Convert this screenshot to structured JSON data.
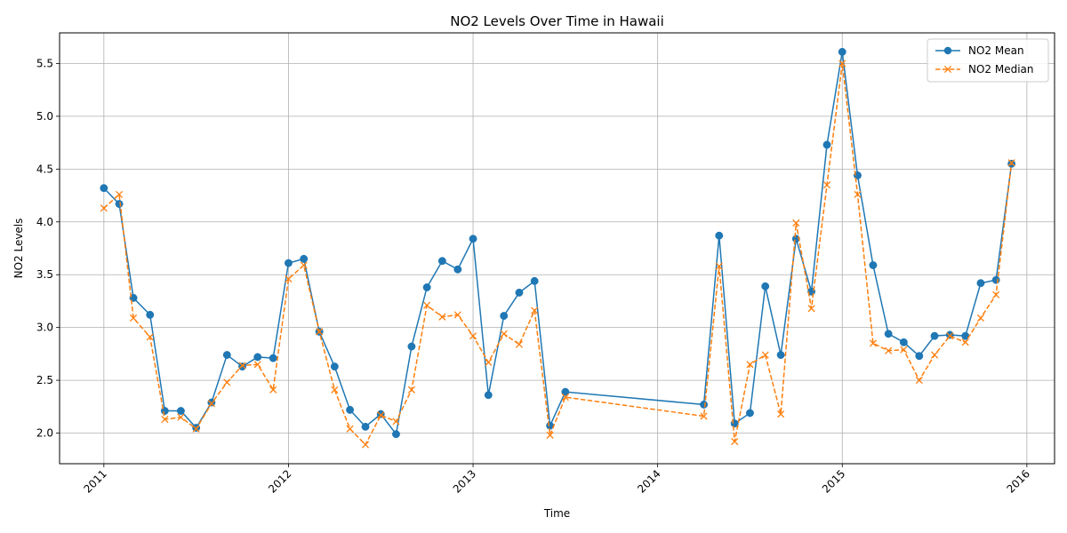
{
  "chart_data": {
    "type": "line",
    "title": "NO2 Levels Over Time in Hawaii",
    "xlabel": "Time",
    "ylabel": "NO2 Levels",
    "xlim": [
      2010.76,
      2016.15
    ],
    "ylim": [
      1.71,
      5.79
    ],
    "x_ticks": [
      2011,
      2012,
      2013,
      2014,
      2015,
      2016
    ],
    "x_tick_labels": [
      "2011",
      "2012",
      "2013",
      "2014",
      "2015",
      "2016"
    ],
    "y_ticks": [
      2.0,
      2.5,
      3.0,
      3.5,
      4.0,
      4.5,
      5.0,
      5.5
    ],
    "y_tick_labels": [
      "2.0",
      "2.5",
      "3.0",
      "3.5",
      "4.0",
      "4.5",
      "5.0",
      "5.5"
    ],
    "grid": true,
    "legend": "top-right",
    "x": [
      2011.0,
      2011.083,
      2011.16,
      2011.25,
      2011.33,
      2011.417,
      2011.5,
      2011.583,
      2011.667,
      2011.75,
      2011.833,
      2011.917,
      2012.0,
      2012.083,
      2012.167,
      2012.25,
      2012.333,
      2012.417,
      2012.5,
      2012.583,
      2012.667,
      2012.75,
      2012.833,
      2012.917,
      2013.0,
      2013.083,
      2013.167,
      2013.25,
      2013.333,
      2013.417,
      2013.5,
      2014.25,
      2014.333,
      2014.417,
      2014.5,
      2014.583,
      2014.667,
      2014.75,
      2014.833,
      2014.917,
      2015.0,
      2015.083,
      2015.167,
      2015.25,
      2015.333,
      2015.417,
      2015.5,
      2015.583,
      2015.667,
      2015.75,
      2015.833,
      2015.917
    ],
    "series": [
      {
        "name": "NO2 Mean",
        "color": "#1f77b4",
        "marker": "circle",
        "linestyle": "solid",
        "values": [
          4.32,
          4.17,
          3.28,
          3.12,
          2.21,
          2.21,
          2.05,
          2.29,
          2.74,
          2.63,
          2.72,
          2.71,
          3.61,
          3.65,
          2.96,
          2.63,
          2.22,
          2.06,
          2.18,
          1.99,
          2.82,
          3.38,
          3.63,
          3.55,
          3.84,
          2.36,
          3.11,
          3.33,
          3.44,
          2.07,
          2.39,
          2.27,
          3.87,
          2.09,
          2.19,
          3.39,
          2.74,
          3.84,
          3.34,
          4.73,
          5.61,
          4.44,
          3.59,
          2.94,
          2.86,
          2.73,
          2.92,
          2.93,
          2.92,
          3.42,
          3.45,
          4.55
        ]
      },
      {
        "name": "NO2 Median",
        "color": "#ff7f0e",
        "marker": "x",
        "linestyle": "dashed",
        "values": [
          4.13,
          4.26,
          3.09,
          2.91,
          2.13,
          2.15,
          2.04,
          2.28,
          2.48,
          2.64,
          2.65,
          2.41,
          3.46,
          3.59,
          2.96,
          2.41,
          2.04,
          1.89,
          2.17,
          2.11,
          2.41,
          3.21,
          3.1,
          3.12,
          2.92,
          2.67,
          2.94,
          2.84,
          3.16,
          1.98,
          2.34,
          2.16,
          3.58,
          1.92,
          2.65,
          2.74,
          2.18,
          3.99,
          3.18,
          4.35,
          5.5,
          4.26,
          2.85,
          2.78,
          2.79,
          2.5,
          2.74,
          2.92,
          2.86,
          3.09,
          3.31,
          4.56
        ]
      }
    ]
  }
}
